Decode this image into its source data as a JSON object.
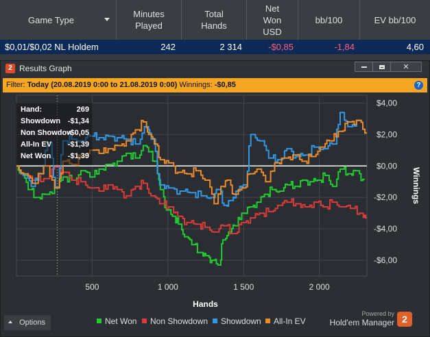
{
  "table": {
    "columns": [
      "Game Type",
      "Minutes\nPlayed",
      "Total\nHands",
      "Net\nWon\nUSD",
      "bb/100",
      "EV bb/100"
    ],
    "row": {
      "game_type": "$0,01/$0,02 NL Holdem",
      "minutes_played": "242",
      "total_hands": "2 314",
      "net_won_usd": "-$0,85",
      "bb100": "-1,84",
      "ev_bb100": "4,60"
    },
    "sort_indicator_icon": "triangle-down-icon"
  },
  "window": {
    "app_badge": "2",
    "title": "Results Graph",
    "buttons": [
      "minimize-icon",
      "maximize-icon",
      "close-icon"
    ],
    "close_label": "✕"
  },
  "filter": {
    "label": "Filter:",
    "range": "Today (20.08.2019 0:00 to 21.08.2019 0:00)",
    "winnings_label": "Winnings:",
    "winnings_value": "-$0,85",
    "help_icon": "question-icon",
    "help_label": "?"
  },
  "infobox": {
    "rows": [
      {
        "label": "Hand:",
        "value": "269"
      },
      {
        "label": "Showdown",
        "value": "-$1,34"
      },
      {
        "label": "Non Showdown",
        "value": "-$0,05"
      },
      {
        "label": "All-In EV",
        "value": "-$1,39"
      },
      {
        "label": "Net Won",
        "value": "-$1,39"
      }
    ]
  },
  "options": {
    "label": "Options",
    "icon": "chevron-up-icon"
  },
  "branding": {
    "powered_by": "Powered by",
    "product": "Hold'em Manager",
    "badge": "2"
  },
  "colors": {
    "net_won": "#22cc33",
    "non_showdown": "#dd3b3b",
    "showdown": "#3399e6",
    "all_in_ev": "#ee8b2a",
    "filter_bar": "#f5a623",
    "selected_row": "#0d2a57"
  },
  "chart_data": {
    "type": "line",
    "xlabel": "Hands",
    "ylabel": "Winnings",
    "xlim": [
      0,
      2314
    ],
    "ylim": [
      -7,
      4.5
    ],
    "x_ticks": [
      500,
      1000,
      1500,
      2000
    ],
    "x_tick_labels": [
      "500",
      "1 000",
      "1 500",
      "2 000"
    ],
    "y_ticks": [
      4,
      2,
      0,
      -2,
      -4,
      -6
    ],
    "y_tick_labels": [
      "$4,00",
      "$2,00",
      "$0,00",
      "-$2,00",
      "-$4,00",
      "-$6,00"
    ],
    "grid": true,
    "legend_position": "bottom",
    "crosshair_x": 269,
    "series": [
      {
        "name": "Net Won",
        "color": "#22cc33",
        "points": [
          [
            0,
            0
          ],
          [
            40,
            -0.5
          ],
          [
            90,
            -1.5
          ],
          [
            140,
            -2
          ],
          [
            200,
            -1.8
          ],
          [
            269,
            -1.39
          ],
          [
            320,
            -0.7
          ],
          [
            380,
            -0.9
          ],
          [
            440,
            -0.3
          ],
          [
            500,
            -0.7
          ],
          [
            560,
            -0.2
          ],
          [
            620,
            0.1
          ],
          [
            680,
            0.3
          ],
          [
            740,
            0.8
          ],
          [
            800,
            0.5
          ],
          [
            850,
            1.3
          ],
          [
            880,
            0.9
          ],
          [
            920,
            0.3
          ],
          [
            960,
            -1.5
          ],
          [
            1000,
            -2.8
          ],
          [
            1040,
            -3.2
          ],
          [
            1080,
            -3.7
          ],
          [
            1120,
            -4.5
          ],
          [
            1170,
            -5.0
          ],
          [
            1220,
            -5.5
          ],
          [
            1260,
            -5.7
          ],
          [
            1300,
            -6.0
          ],
          [
            1340,
            -6.3
          ],
          [
            1370,
            -4.7
          ],
          [
            1410,
            -4.2
          ],
          [
            1450,
            -3.8
          ],
          [
            1500,
            -3.0
          ],
          [
            1550,
            -2.6
          ],
          [
            1600,
            -2.3
          ],
          [
            1650,
            -1.8
          ],
          [
            1700,
            -1.5
          ],
          [
            1750,
            -1.6
          ],
          [
            1800,
            -1.2
          ],
          [
            1850,
            -1.3
          ],
          [
            1900,
            -0.9
          ],
          [
            1950,
            -1.0
          ],
          [
            2000,
            -0.9
          ],
          [
            2050,
            -0.6
          ],
          [
            2100,
            -1.3
          ],
          [
            2150,
            -0.2
          ],
          [
            2200,
            -0.5
          ],
          [
            2250,
            -0.3
          ],
          [
            2300,
            -0.85
          ]
        ]
      },
      {
        "name": "Non Showdown",
        "color": "#dd3b3b",
        "points": [
          [
            0,
            0
          ],
          [
            60,
            -0.6
          ],
          [
            120,
            -0.9
          ],
          [
            200,
            -0.8
          ],
          [
            269,
            -0.05
          ],
          [
            320,
            -0.4
          ],
          [
            380,
            -0.9
          ],
          [
            440,
            -1.0
          ],
          [
            500,
            -1.4
          ],
          [
            560,
            -1.6
          ],
          [
            620,
            -1.2
          ],
          [
            680,
            -1.5
          ],
          [
            740,
            -1.9
          ],
          [
            800,
            -1.3
          ],
          [
            850,
            -1.1
          ],
          [
            900,
            -1.9
          ],
          [
            960,
            -2.4
          ],
          [
            1020,
            -2.6
          ],
          [
            1080,
            -3.2
          ],
          [
            1140,
            -3.6
          ],
          [
            1200,
            -3.7
          ],
          [
            1260,
            -3.9
          ],
          [
            1320,
            -4.2
          ],
          [
            1380,
            -3.8
          ],
          [
            1440,
            -4.3
          ],
          [
            1500,
            -3.6
          ],
          [
            1560,
            -3.3
          ],
          [
            1620,
            -3.0
          ],
          [
            1680,
            -2.9
          ],
          [
            1740,
            -2.5
          ],
          [
            1800,
            -2.3
          ],
          [
            1860,
            -2.4
          ],
          [
            1920,
            -2.6
          ],
          [
            1980,
            -2.3
          ],
          [
            2040,
            -2.6
          ],
          [
            2100,
            -2.3
          ],
          [
            2160,
            -2.6
          ],
          [
            2220,
            -2.7
          ],
          [
            2280,
            -3.0
          ],
          [
            2314,
            -3.3
          ]
        ]
      },
      {
        "name": "Showdown",
        "color": "#3399e6",
        "points": [
          [
            0,
            0
          ],
          [
            60,
            -0.6
          ],
          [
            110,
            -1.3
          ],
          [
            160,
            -0.5
          ],
          [
            220,
            1.5
          ],
          [
            269,
            -1.34
          ],
          [
            320,
            1.6
          ],
          [
            380,
            1.7
          ],
          [
            440,
            1.6
          ],
          [
            500,
            1.9
          ],
          [
            560,
            1.8
          ],
          [
            620,
            1.9
          ],
          [
            680,
            1.8
          ],
          [
            740,
            1.7
          ],
          [
            800,
            1.4
          ],
          [
            860,
            2.5
          ],
          [
            900,
            1.7
          ],
          [
            960,
            -1.2
          ],
          [
            1020,
            -1.4
          ],
          [
            1100,
            -1.6
          ],
          [
            1160,
            -1.7
          ],
          [
            1240,
            -1.9
          ],
          [
            1300,
            -2.0
          ],
          [
            1340,
            -1.5
          ],
          [
            1380,
            -2.5
          ],
          [
            1420,
            -2.2
          ],
          [
            1460,
            -1.6
          ],
          [
            1510,
            -1.2
          ],
          [
            1560,
            2.0
          ],
          [
            1620,
            1.6
          ],
          [
            1680,
            0.5
          ],
          [
            1740,
            0.4
          ],
          [
            1800,
            1.1
          ],
          [
            1860,
            0.6
          ],
          [
            1920,
            0.7
          ],
          [
            1980,
            1.2
          ],
          [
            2040,
            1.1
          ],
          [
            2100,
            1.4
          ],
          [
            2150,
            3.4
          ],
          [
            2200,
            2.5
          ],
          [
            2260,
            2.9
          ],
          [
            2314,
            2.1
          ]
        ]
      },
      {
        "name": "All-In EV",
        "color": "#ee8b2a",
        "points": [
          [
            0,
            0
          ],
          [
            60,
            -0.5
          ],
          [
            120,
            -1.1
          ],
          [
            200,
            0.0
          ],
          [
            269,
            -1.39
          ],
          [
            320,
            0.3
          ],
          [
            380,
            0.1
          ],
          [
            440,
            0.6
          ],
          [
            500,
            1.0
          ],
          [
            560,
            0.8
          ],
          [
            620,
            1.1
          ],
          [
            680,
            1.3
          ],
          [
            740,
            1.6
          ],
          [
            800,
            2.3
          ],
          [
            850,
            2.8
          ],
          [
            880,
            2.0
          ],
          [
            920,
            1.4
          ],
          [
            960,
            0.4
          ],
          [
            1020,
            0.2
          ],
          [
            1080,
            -0.4
          ],
          [
            1140,
            -0.5
          ],
          [
            1200,
            -0.3
          ],
          [
            1260,
            -0.9
          ],
          [
            1320,
            -2.4
          ],
          [
            1360,
            -1.3
          ],
          [
            1400,
            -0.9
          ],
          [
            1450,
            -1.8
          ],
          [
            1500,
            -1.4
          ],
          [
            1550,
            -0.5
          ],
          [
            1600,
            -0.2
          ],
          [
            1660,
            -1.0
          ],
          [
            1720,
            0.2
          ],
          [
            1780,
            0.5
          ],
          [
            1840,
            0.7
          ],
          [
            1900,
            0.3
          ],
          [
            1960,
            0.6
          ],
          [
            2020,
            1.2
          ],
          [
            2080,
            1.6
          ],
          [
            2140,
            2.2
          ],
          [
            2200,
            2.8
          ],
          [
            2260,
            2.9
          ],
          [
            2314,
            2.1
          ]
        ]
      }
    ]
  }
}
